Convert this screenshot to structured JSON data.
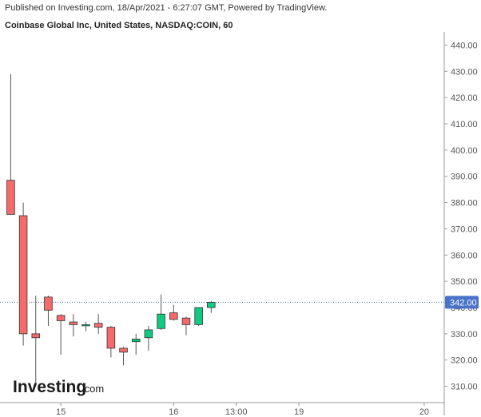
{
  "header": {
    "publish_line": "Published on Investing.com, 18/Apr/2021 - 6:27:07 GMT, Powered by TradingView.",
    "symbol_line": "Coinbase Global Inc, United States, NASDAQ:COIN, 60"
  },
  "logo": {
    "main": "Investing",
    "suffix": ".com"
  },
  "colors": {
    "up": "#0ecb81",
    "down": "#f66a6a",
    "wick": "#555555",
    "price_line": "#4a72c9",
    "price_tag": "#4a72c9",
    "axis": "#999999"
  },
  "chart_data": {
    "type": "candlestick",
    "title": "Coinbase Global Inc, United States, NASDAQ:COIN, 60",
    "ylim": [
      305,
      445
    ],
    "y_ticks": [
      310,
      320,
      330,
      340,
      350,
      360,
      370,
      380,
      390,
      400,
      410,
      420,
      430,
      440
    ],
    "y_tick_labels": [
      "310.00",
      "320.00",
      "330.00",
      "340.00",
      "350.00",
      "360.00",
      "370.00",
      "380.00",
      "390.00",
      "400.00",
      "410.00",
      "420.00",
      "430.00",
      "440.00"
    ],
    "x_tick_labels": [
      "15",
      "16",
      "13:00",
      "19",
      "20"
    ],
    "x_tick_positions": [
      4,
      13,
      18,
      23,
      33
    ],
    "x_range": [
      -0.6,
      34.6
    ],
    "last_price": 342.0,
    "last_price_label": "342.00",
    "candles": [
      {
        "open": 388.5,
        "high": 429.0,
        "low": 375.5,
        "close": 375.5
      },
      {
        "open": 375.0,
        "high": 380.0,
        "low": 325.5,
        "close": 330.0
      },
      {
        "open": 330.0,
        "high": 344.5,
        "low": 310.0,
        "close": 328.5
      },
      {
        "open": 344.0,
        "high": 344.5,
        "low": 333.0,
        "close": 339.0
      },
      {
        "open": 337.0,
        "high": 337.5,
        "low": 322.0,
        "close": 335.0
      },
      {
        "open": 334.5,
        "high": 337.5,
        "low": 329.0,
        "close": 333.5
      },
      {
        "open": 333.5,
        "high": 334.5,
        "low": 331.0,
        "close": 333.5
      },
      {
        "open": 334.0,
        "high": 337.5,
        "low": 330.0,
        "close": 332.5
      },
      {
        "open": 332.5,
        "high": 333.0,
        "low": 321.0,
        "close": 324.5
      },
      {
        "open": 324.5,
        "high": 325.0,
        "low": 318.0,
        "close": 323.0
      },
      {
        "open": 327.0,
        "high": 330.0,
        "low": 322.0,
        "close": 328.0
      },
      {
        "open": 328.5,
        "high": 333.0,
        "low": 323.5,
        "close": 331.5
      },
      {
        "open": 332.0,
        "high": 345.0,
        "low": 331.5,
        "close": 337.5
      },
      {
        "open": 338.0,
        "high": 341.0,
        "low": 335.0,
        "close": 335.5
      },
      {
        "open": 336.0,
        "high": 336.5,
        "low": 329.5,
        "close": 333.5
      },
      {
        "open": 333.5,
        "high": 340.0,
        "low": 333.0,
        "close": 340.0
      },
      {
        "open": 340.0,
        "high": 342.5,
        "low": 338.0,
        "close": 342.0
      }
    ]
  }
}
